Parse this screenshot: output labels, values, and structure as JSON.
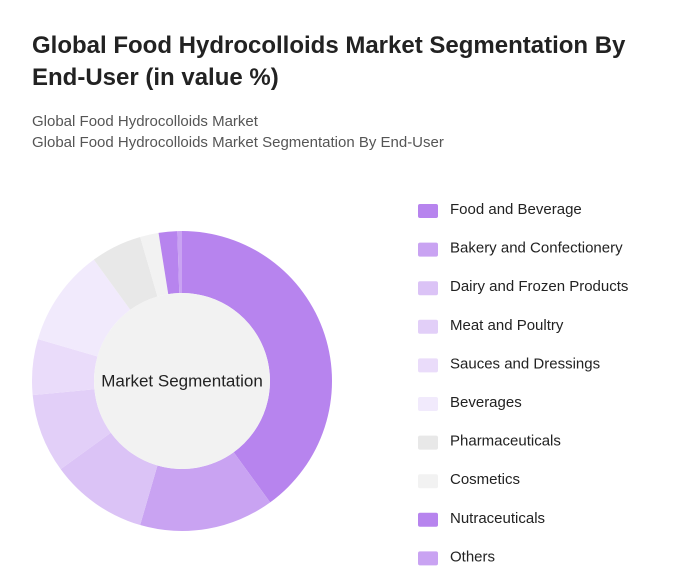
{
  "chart_data": {
    "type": "donut",
    "title": "Global Food Hydrocolloids Market Segmentation By End-User (in value %)",
    "subtitles": [
      "Global Food Hydrocolloids Market",
      "Global Food Hydrocolloids Market Segmentation By End-User"
    ],
    "center_label": "Market Segmentation",
    "categories": [
      "Food and Beverage",
      "Bakery and Confectionery",
      "Dairy and Frozen Products",
      "Meat and Poultry",
      "Sauces and Dressings",
      "Beverages",
      "Pharmaceuticals",
      "Cosmetics",
      "Nutraceuticals",
      "Others"
    ],
    "values": [
      40,
      14.5,
      10.5,
      8.5,
      6,
      10.5,
      5.5,
      2,
      2,
      0.5
    ],
    "colors": [
      "#b784ee",
      "#c9a3f2",
      "#dbc3f6",
      "#e2cff8",
      "#eadcfa",
      "#f1eafc",
      "#e8e8e8",
      "#f2f2f2",
      "#b784ee",
      "#c9a3f2"
    ],
    "legend": "right"
  }
}
